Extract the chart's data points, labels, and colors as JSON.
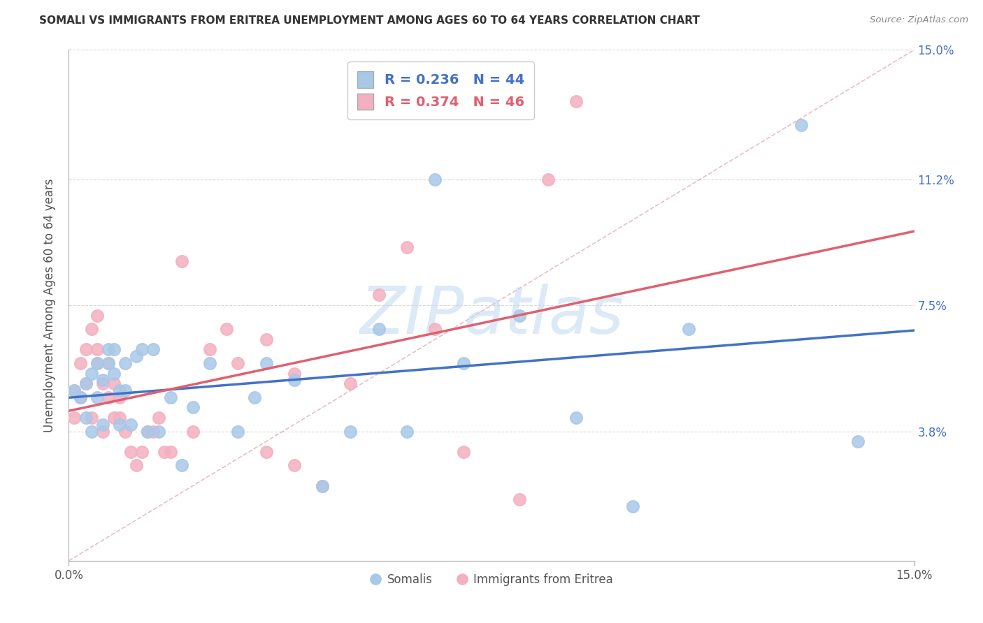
{
  "title": "SOMALI VS IMMIGRANTS FROM ERITREA UNEMPLOYMENT AMONG AGES 60 TO 64 YEARS CORRELATION CHART",
  "source": "Source: ZipAtlas.com",
  "ylabel": "Unemployment Among Ages 60 to 64 years",
  "xlim": [
    0.0,
    0.15
  ],
  "ylim": [
    0.0,
    0.15
  ],
  "yticks": [
    0.0,
    0.038,
    0.075,
    0.112,
    0.15
  ],
  "ytick_labels": [
    "",
    "3.8%",
    "7.5%",
    "11.2%",
    "15.0%"
  ],
  "xtick_positions": [
    0.0,
    0.15
  ],
  "xtick_labels": [
    "0.0%",
    "15.0%"
  ],
  "legend1_label": "Somalis",
  "legend2_label": "Immigrants from Eritrea",
  "somali_R": "0.236",
  "somali_N": "44",
  "eritrea_R": "0.374",
  "eritrea_N": "46",
  "somali_color": "#a8c8e8",
  "eritrea_color": "#f4b0c0",
  "somali_line_color": "#4472c4",
  "eritrea_line_color": "#e06070",
  "diagonal_color": "#e0b0b8",
  "grid_color": "#d8d8d8",
  "background_color": "#ffffff",
  "watermark": "ZIPatlas",
  "watermark_color": "#c0d8f0",
  "somali_x": [
    0.001,
    0.002,
    0.003,
    0.003,
    0.004,
    0.004,
    0.005,
    0.005,
    0.006,
    0.006,
    0.007,
    0.007,
    0.008,
    0.008,
    0.009,
    0.009,
    0.01,
    0.01,
    0.011,
    0.012,
    0.013,
    0.014,
    0.015,
    0.016,
    0.018,
    0.02,
    0.022,
    0.025,
    0.03,
    0.033,
    0.035,
    0.04,
    0.045,
    0.05,
    0.055,
    0.06,
    0.065,
    0.07,
    0.08,
    0.09,
    0.1,
    0.11,
    0.13,
    0.14
  ],
  "somali_y": [
    0.05,
    0.048,
    0.042,
    0.052,
    0.038,
    0.055,
    0.048,
    0.058,
    0.04,
    0.053,
    0.058,
    0.062,
    0.055,
    0.062,
    0.04,
    0.05,
    0.05,
    0.058,
    0.04,
    0.06,
    0.062,
    0.038,
    0.062,
    0.038,
    0.048,
    0.028,
    0.045,
    0.058,
    0.038,
    0.048,
    0.058,
    0.053,
    0.022,
    0.038,
    0.068,
    0.038,
    0.112,
    0.058,
    0.072,
    0.042,
    0.016,
    0.068,
    0.128,
    0.035
  ],
  "eritrea_x": [
    0.001,
    0.001,
    0.002,
    0.002,
    0.003,
    0.003,
    0.004,
    0.004,
    0.005,
    0.005,
    0.005,
    0.006,
    0.006,
    0.007,
    0.007,
    0.008,
    0.008,
    0.009,
    0.009,
    0.01,
    0.011,
    0.012,
    0.013,
    0.014,
    0.015,
    0.016,
    0.017,
    0.018,
    0.02,
    0.022,
    0.025,
    0.028,
    0.03,
    0.035,
    0.035,
    0.04,
    0.04,
    0.045,
    0.05,
    0.055,
    0.06,
    0.065,
    0.07,
    0.08,
    0.085,
    0.09
  ],
  "eritrea_y": [
    0.05,
    0.042,
    0.048,
    0.058,
    0.062,
    0.052,
    0.042,
    0.068,
    0.072,
    0.058,
    0.062,
    0.038,
    0.052,
    0.048,
    0.058,
    0.042,
    0.052,
    0.042,
    0.048,
    0.038,
    0.032,
    0.028,
    0.032,
    0.038,
    0.038,
    0.042,
    0.032,
    0.032,
    0.088,
    0.038,
    0.062,
    0.068,
    0.058,
    0.032,
    0.065,
    0.028,
    0.055,
    0.022,
    0.052,
    0.078,
    0.092,
    0.068,
    0.032,
    0.018,
    0.112,
    0.135
  ]
}
